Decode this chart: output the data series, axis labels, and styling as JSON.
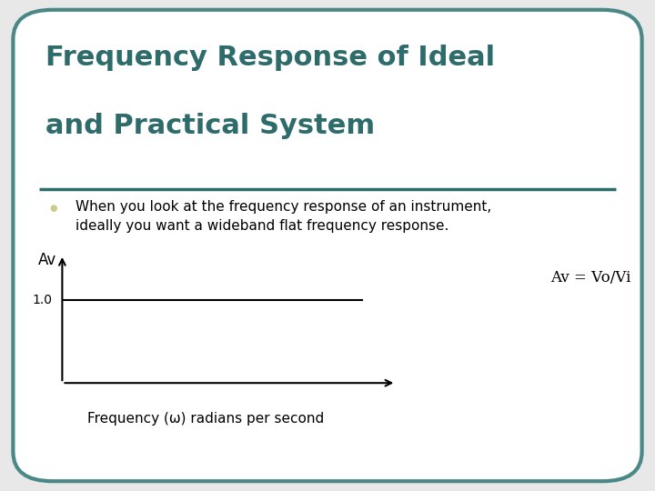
{
  "background_color": "#e8e8e8",
  "slide_bg": "#ffffff",
  "title_line1": "Frequency Response of Ideal",
  "title_line2": "and Practical System",
  "title_color": "#2e6b6b",
  "title_fontsize": 22,
  "title_font_weight": "bold",
  "divider_color": "#2e6b6b",
  "bullet_text_line1": "When you look at the frequency response of an instrument,",
  "bullet_text_line2": "ideally you want a wideband flat frequency response.",
  "bullet_color": "#cccc88",
  "text_color": "#000000",
  "text_fontsize": 11,
  "graph_ylabel": "Av",
  "graph_ytick_label": "1.0",
  "graph_xlabel": "Frequency (ω) radians per second",
  "graph_annotation": "Av = Vo/Vi",
  "graph_line_color": "#000000",
  "border_color": "#4a8888",
  "border_linewidth": 3
}
